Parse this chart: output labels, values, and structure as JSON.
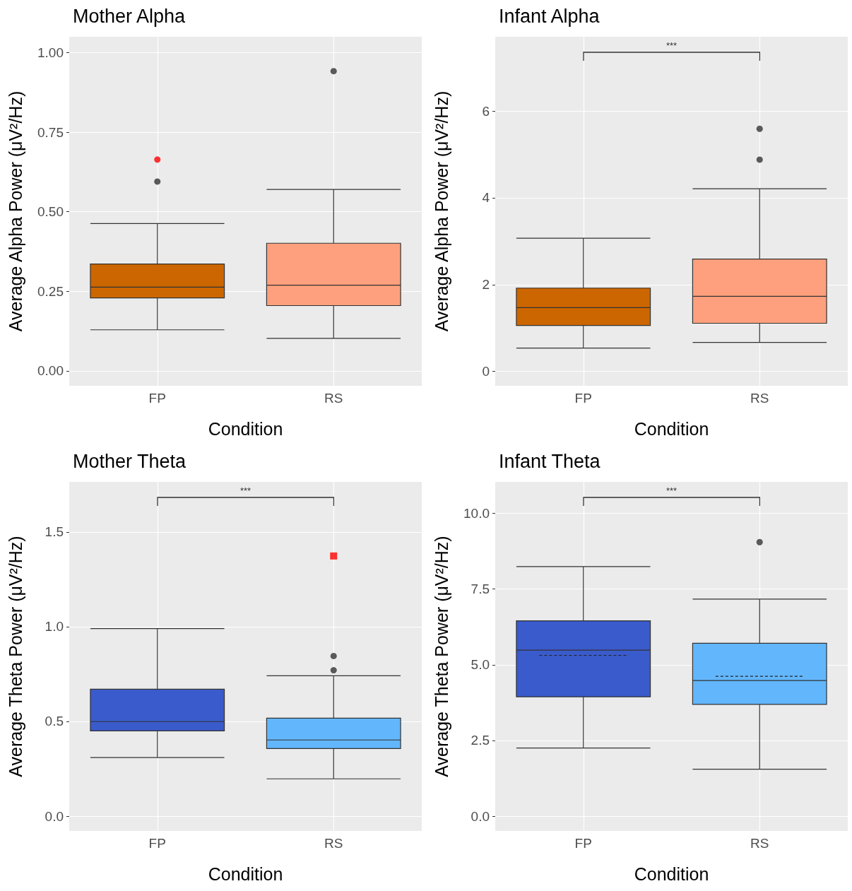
{
  "chart_data": [
    {
      "type": "box",
      "title": "Mother Alpha",
      "xlabel": "Condition",
      "ylabel": "Average Alpha Power (μV²/Hz)",
      "categories": [
        "FP",
        "RS"
      ],
      "colors": [
        "#cc6600",
        "#fea07d"
      ],
      "boxes": [
        {
          "low": 0.129,
          "q1": 0.229,
          "median": 0.263,
          "q3": 0.336,
          "high": 0.463,
          "outliers": [
            0.595
          ]
        },
        {
          "low": 0.102,
          "q1": 0.205,
          "median": 0.269,
          "q3": 0.401,
          "high": 0.57,
          "outliers": [
            0.942
          ]
        }
      ],
      "series": [
        {
          "type": "scatter",
          "x": [
            "FP"
          ],
          "values": [
            0.664
          ],
          "color": "#ff0000",
          "marker": "circle"
        }
      ],
      "ylim": [
        -0.047,
        1.05
      ],
      "yticks": [
        {
          "value": 0,
          "label": "0.00"
        },
        0.25,
        {
          "value": 0.5,
          "label": "0.50"
        },
        0.75,
        {
          "value": 1,
          "label": "1.00"
        }
      ],
      "grid": true
    },
    {
      "type": "box",
      "title": "Infant Alpha",
      "xlabel": "Condition",
      "ylabel": "Average Alpha Power (μV²/Hz)",
      "categories": [
        "FP",
        "RS"
      ],
      "colors": [
        "#cc6600",
        "#fea07d"
      ],
      "boxes": [
        {
          "low": 0.54,
          "q1": 1.06,
          "median": 1.47,
          "q3": 1.92,
          "high": 3.07
        },
        {
          "low": 0.67,
          "q1": 1.11,
          "median": 1.73,
          "q3": 2.59,
          "high": 4.21,
          "outliers": [
            4.88,
            5.59
          ]
        }
      ],
      "ylim": [
        -0.33,
        7.71
      ],
      "yticks": [
        0,
        2,
        4,
        6
      ],
      "grid": true,
      "annotations": [
        "***"
      ]
    },
    {
      "type": "box",
      "title": "Mother Theta",
      "xlabel": "Condition",
      "ylabel": "Average Theta Power (μV²/Hz)",
      "categories": [
        "FP",
        "RS"
      ],
      "colors": [
        "#3a5bcb",
        "#62b6fc"
      ],
      "boxes": [
        {
          "low": 0.309,
          "q1": 0.45,
          "median": 0.499,
          "q3": 0.67,
          "high": 0.99
        },
        {
          "low": 0.197,
          "q1": 0.357,
          "median": 0.402,
          "q3": 0.517,
          "high": 0.741,
          "outliers": [
            0.77,
            0.845
          ]
        }
      ],
      "series": [
        {
          "type": "scatter",
          "x": [
            "RS"
          ],
          "values": [
            1.373
          ],
          "color": "#ff0000",
          "marker": "square"
        }
      ],
      "ylim": [
        -0.078,
        1.764
      ],
      "yticks": [
        {
          "value": 0,
          "label": "0.0"
        },
        0.5,
        {
          "value": 1,
          "label": "1.0"
        },
        1.5
      ],
      "grid": true,
      "annotations": [
        "***"
      ]
    },
    {
      "type": "box",
      "title": "Infant Theta",
      "xlabel": "Condition",
      "ylabel": "Average Theta Power (μV²/Hz)",
      "categories": [
        "FP",
        "RS"
      ],
      "colors": [
        "#3a5bcb",
        "#62b6fc"
      ],
      "boxes": [
        {
          "low": 2.25,
          "q1": 3.94,
          "median": 5.48,
          "q3": 6.45,
          "high": 8.24,
          "mean": 5.31
        },
        {
          "low": 1.55,
          "q1": 3.69,
          "median": 4.48,
          "q3": 5.71,
          "high": 7.17,
          "mean": 4.62,
          "outliers": [
            9.05
          ]
        }
      ],
      "ylim": [
        -0.49,
        11.04
      ],
      "yticks": [
        {
          "value": 0,
          "label": "0.0"
        },
        2.5,
        {
          "value": 5,
          "label": "5.0"
        },
        7.5,
        {
          "value": 10,
          "label": "10.0"
        }
      ],
      "grid": true,
      "annotations": [
        "***"
      ]
    }
  ]
}
